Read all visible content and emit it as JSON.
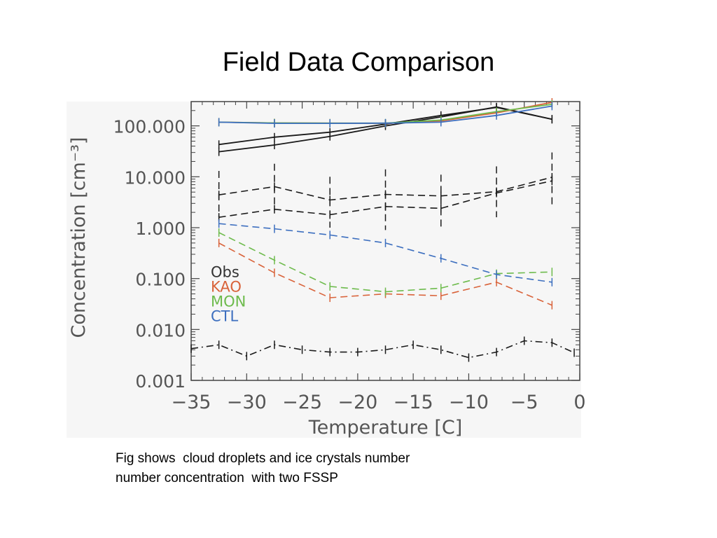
{
  "slide": {
    "title": "Field Data Comparison",
    "caption_lines": [
      "Fig shows  cloud droplets and ice crystals number",
      "number concentration  with two FSSP"
    ]
  },
  "chart_data": {
    "type": "line",
    "title": "",
    "xlabel": "Temperature [C]",
    "ylabel": "Concentration [cm⁻³]",
    "xlim": [
      -35,
      0
    ],
    "ylim": [
      0.001,
      300
    ],
    "yscale": "log",
    "x_ticks": [
      -35,
      -30,
      -25,
      -20,
      -15,
      -10,
      -5,
      0
    ],
    "x_tick_labels": [
      "−35",
      "−30",
      "−25",
      "−20",
      "−15",
      "−10",
      "−5",
      "0"
    ],
    "y_ticks": [
      0.001,
      0.01,
      0.1,
      1,
      10,
      100
    ],
    "y_tick_labels": [
      "0.001",
      "0.010",
      "0.100",
      "1.000",
      "10.000",
      "100.000"
    ],
    "grid": false,
    "legend_position": "lower-left",
    "legend": [
      {
        "label": "Obs",
        "color": "#333333"
      },
      {
        "label": "KAO",
        "color": "#d9633a"
      },
      {
        "label": "MON",
        "color": "#6dbb4c"
      },
      {
        "label": "CTL",
        "color": "#3d6fbf"
      }
    ],
    "series": [
      {
        "name": "Obs",
        "color": "#1a1a1a",
        "style": "solid",
        "x": [
          -32.5,
          -27.5,
          -22.5,
          -17.5,
          -12.5,
          -7.5,
          -2.5
        ],
        "y": [
          43,
          60,
          75,
          108,
          160,
          230,
          135
        ]
      },
      {
        "name": "Obs",
        "color": "#1a1a1a",
        "style": "solid",
        "x": [
          -32.5,
          -27.5,
          -22.5,
          -17.5,
          -12.5,
          -7.5,
          -2.5
        ],
        "y": [
          31,
          42,
          62,
          100,
          150,
          235,
          135
        ]
      },
      {
        "name": "Obs",
        "color": "#1a1a1a",
        "style": "dashed",
        "x": [
          -32.5,
          -27.5,
          -22.5,
          -17.5,
          -12.5,
          -7.5,
          -2.5
        ],
        "y": [
          4.4,
          6.4,
          3.5,
          4.5,
          4.2,
          5.1,
          9.8
        ],
        "err_low": [
          1.6,
          2.2,
          1.0,
          0.9,
          1.0,
          1.6,
          2.6
        ],
        "err_high": [
          13,
          18,
          10,
          14,
          11,
          16,
          30
        ]
      },
      {
        "name": "Obs",
        "color": "#1a1a1a",
        "style": "dashed",
        "x": [
          -32.5,
          -27.5,
          -22.5,
          -17.5,
          -12.5,
          -7.5,
          -2.5
        ],
        "y": [
          1.6,
          2.3,
          1.8,
          2.6,
          2.4,
          4.8,
          8.3
        ]
      },
      {
        "name": "Obs",
        "color": "#1a1a1a",
        "style": "dashdot",
        "x": [
          -35,
          -32.5,
          -30,
          -27.5,
          -25,
          -22.5,
          -20,
          -17.5,
          -15,
          -12.5,
          -10,
          -7.5,
          -5,
          -2.5,
          -0.5
        ],
        "y": [
          0.0042,
          0.005,
          0.003,
          0.005,
          0.004,
          0.0036,
          0.0036,
          0.004,
          0.005,
          0.004,
          0.0028,
          0.0036,
          0.006,
          0.0055,
          0.0035
        ]
      },
      {
        "name": "KAO",
        "color": "#d9633a",
        "style": "solid",
        "x": [
          -32.5,
          -27.5,
          -22.5,
          -17.5,
          -12.5,
          -7.5,
          -2.5
        ],
        "y": [
          118,
          114,
          113,
          112,
          125,
          180,
          290
        ]
      },
      {
        "name": "MON",
        "color": "#6dbb4c",
        "style": "solid",
        "x": [
          -32.5,
          -27.5,
          -22.5,
          -17.5,
          -12.5,
          -7.5,
          -2.5
        ],
        "y": [
          118,
          114,
          113,
          113,
          130,
          190,
          265
        ]
      },
      {
        "name": "CTL",
        "color": "#3d6fbf",
        "style": "solid",
        "x": [
          -32.5,
          -27.5,
          -22.5,
          -17.5,
          -12.5,
          -7.5,
          -2.5
        ],
        "y": [
          118,
          112,
          112,
          113,
          118,
          160,
          245
        ]
      },
      {
        "name": "KAO",
        "color": "#d9633a",
        "style": "dashed",
        "x": [
          -32.5,
          -27.5,
          -22.5,
          -17.5,
          -12.5,
          -7.5,
          -2.5
        ],
        "y": [
          0.5,
          0.13,
          0.042,
          0.05,
          0.046,
          0.085,
          0.03
        ]
      },
      {
        "name": "MON",
        "color": "#6dbb4c",
        "style": "dashed",
        "x": [
          -32.5,
          -27.5,
          -22.5,
          -17.5,
          -12.5,
          -7.5,
          -2.5
        ],
        "y": [
          0.8,
          0.23,
          0.07,
          0.055,
          0.065,
          0.125,
          0.135
        ]
      },
      {
        "name": "CTL",
        "color": "#3d6fbf",
        "style": "dashed",
        "x": [
          -32.5,
          -27.5,
          -22.5,
          -17.5,
          -12.5,
          -7.5,
          -2.5
        ],
        "y": [
          1.2,
          0.95,
          0.72,
          0.5,
          0.25,
          0.12,
          0.085
        ]
      }
    ]
  }
}
